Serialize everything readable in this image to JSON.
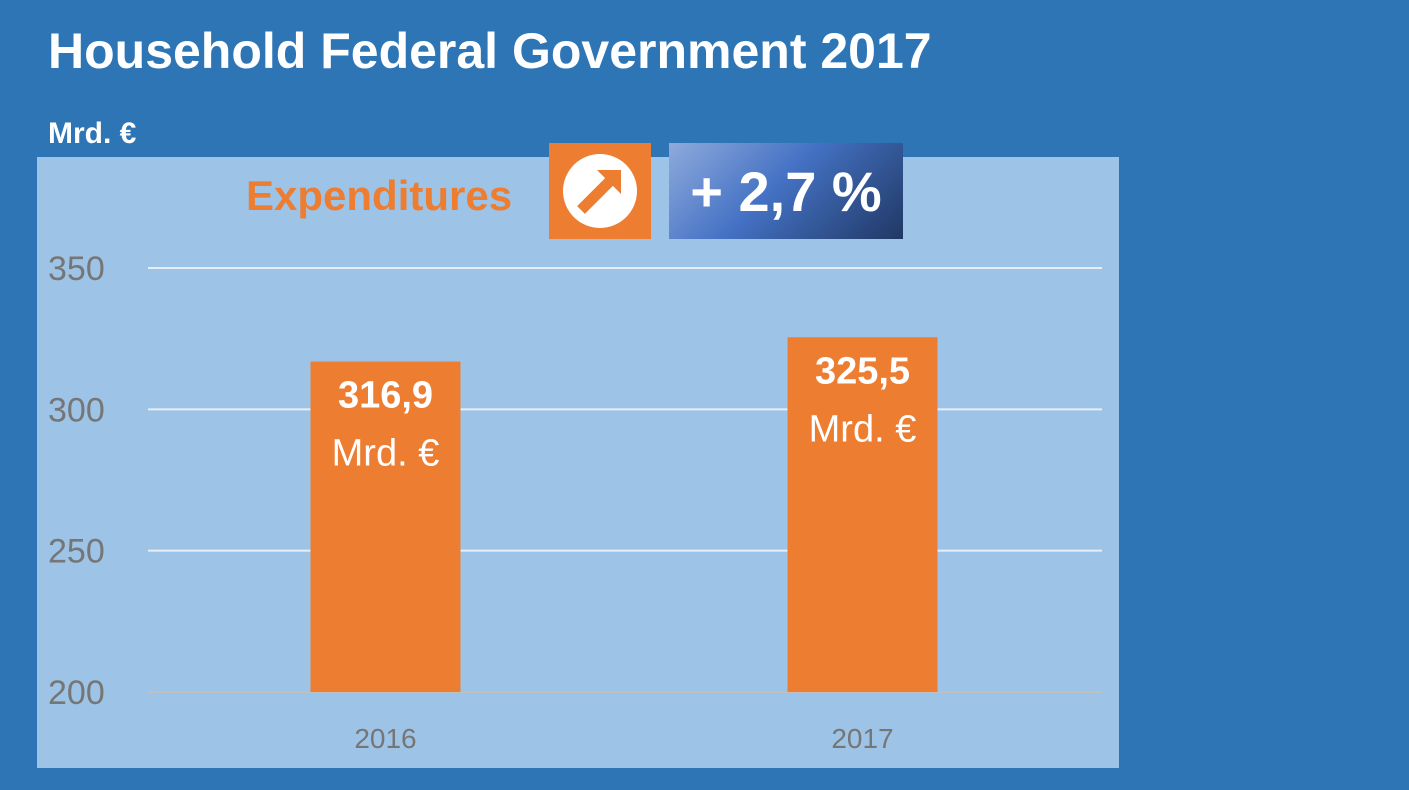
{
  "title": "Household Federal Government 2017",
  "unit_label": "Mrd. €",
  "expenditures_label": "Expenditures",
  "change_label": "+ 2,7 %",
  "colors": {
    "background": "#2e75b6",
    "plot_background": "#9dc3e6",
    "bar": "#ed7d31",
    "change_box": "#4472c4"
  },
  "icons": {
    "trend": "arrow-up-right-circle-icon"
  },
  "chart_data": {
    "type": "bar",
    "title": "Household Federal Government 2017",
    "xlabel": "",
    "ylabel": "Mrd. €",
    "categories": [
      "2016",
      "2017"
    ],
    "values": [
      316.9,
      325.5
    ],
    "data_labels": [
      {
        "value": "316,9",
        "unit": "Mrd. €"
      },
      {
        "value": "325,5",
        "unit": "Mrd. €"
      }
    ],
    "ylim": [
      200,
      350
    ],
    "yticks": [
      200,
      250,
      300,
      350
    ],
    "grid": true,
    "legend": "none"
  }
}
